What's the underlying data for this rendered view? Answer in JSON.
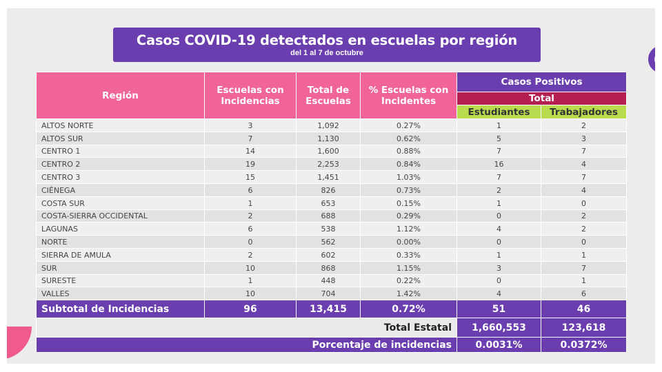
{
  "title": {
    "main": "Casos COVID-19 detectados en escuelas por región",
    "subtitle": "del 1 al 7 de octubre"
  },
  "headers": {
    "region": "Región",
    "escuelas_incidencias": "Escuelas con Incidencias",
    "total_escuelas": "Total de Escuelas",
    "pct_escuelas": "% Escuelas con Incidentes",
    "casos_positivos": "Casos Positivos",
    "total": "Total",
    "estudiantes": "Estudiantes",
    "trabajadores": "Trabajadores"
  },
  "rows": [
    {
      "region": "ALTOS NORTE",
      "incidencias": "3",
      "total": "1,092",
      "pct": "0.27%",
      "estudiantes": "1",
      "trabajadores": "2"
    },
    {
      "region": "ALTOS SUR",
      "incidencias": "7",
      "total": "1,130",
      "pct": "0.62%",
      "estudiantes": "5",
      "trabajadores": "3"
    },
    {
      "region": "CENTRO 1",
      "incidencias": "14",
      "total": "1,600",
      "pct": "0.88%",
      "estudiantes": "7",
      "trabajadores": "7"
    },
    {
      "region": "CENTRO 2",
      "incidencias": "19",
      "total": "2,253",
      "pct": "0.84%",
      "estudiantes": "16",
      "trabajadores": "4"
    },
    {
      "region": "CENTRO 3",
      "incidencias": "15",
      "total": "1,451",
      "pct": "1.03%",
      "estudiantes": "7",
      "trabajadores": "7"
    },
    {
      "region": "CIÉNEGA",
      "incidencias": "6",
      "total": "826",
      "pct": "0.73%",
      "estudiantes": "2",
      "trabajadores": "4"
    },
    {
      "region": "COSTA SUR",
      "incidencias": "1",
      "total": "653",
      "pct": "0.15%",
      "estudiantes": "1",
      "trabajadores": "0"
    },
    {
      "region": "COSTA-SIERRA OCCIDENTAL",
      "incidencias": "2",
      "total": "688",
      "pct": "0.29%",
      "estudiantes": "0",
      "trabajadores": "2"
    },
    {
      "region": "LAGUNAS",
      "incidencias": "6",
      "total": "538",
      "pct": "1.12%",
      "estudiantes": "4",
      "trabajadores": "2"
    },
    {
      "region": "NORTE",
      "incidencias": "0",
      "total": "562",
      "pct": "0.00%",
      "estudiantes": "0",
      "trabajadores": "0"
    },
    {
      "region": "SIERRA DE AMULA",
      "incidencias": "2",
      "total": "602",
      "pct": "0.33%",
      "estudiantes": "1",
      "trabajadores": "1"
    },
    {
      "region": "SUR",
      "incidencias": "10",
      "total": "868",
      "pct": "1.15%",
      "estudiantes": "3",
      "trabajadores": "7"
    },
    {
      "region": "SURESTE",
      "incidencias": "1",
      "total": "448",
      "pct": "0.22%",
      "estudiantes": "0",
      "trabajadores": "1"
    },
    {
      "region": "VALLES",
      "incidencias": "10",
      "total": "704",
      "pct": "1.42%",
      "estudiantes": "4",
      "trabajadores": "6"
    }
  ],
  "subtotal": {
    "label": "Subtotal de Incidencias",
    "incidencias": "96",
    "total": "13,415",
    "pct": "0.72%",
    "estudiantes": "51",
    "trabajadores": "46"
  },
  "total_estatal": {
    "label": "Total Estatal",
    "estudiantes": "1,660,553",
    "trabajadores": "123,618"
  },
  "porcentaje": {
    "label": "Porcentaje de incidencias",
    "estudiantes": "0.0031%",
    "trabajadores": "0.0372%"
  },
  "colors": {
    "purple": "#6a3eae",
    "pink": "#f0649a",
    "crimson": "#b51f4f",
    "green": "#b8dc4e"
  }
}
